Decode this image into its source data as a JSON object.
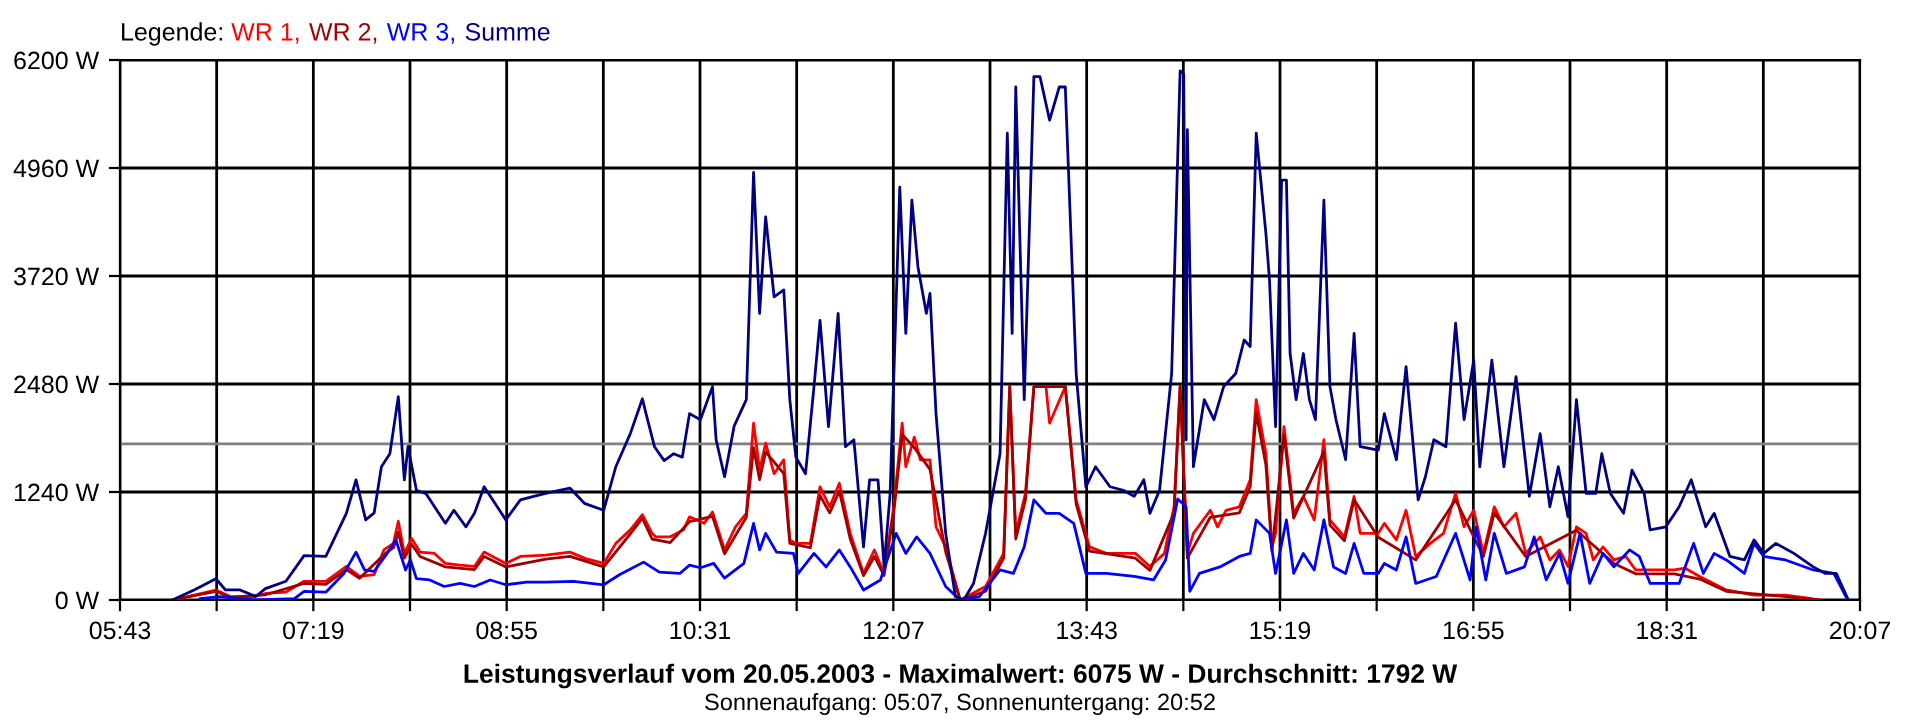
{
  "chart_data": {
    "type": "line",
    "title": "Leistungsverlauf vom 20.05.2003 - Maximalwert: 6075 W - Durchschnitt: 1792 W",
    "subtitle": "Sonnenaufgang: 05:07, Sonnenuntergang: 20:52",
    "legend_title": "Legende:",
    "legend": "top left",
    "grid": true,
    "marker": "none",
    "line_style": "solid",
    "xlim": [
      5.7167,
      20.1167
    ],
    "ylim": [
      0,
      6200
    ],
    "xticks": [
      {
        "value": 5.7167,
        "label": "05:43"
      },
      {
        "value": 6.5167,
        "label": null
      },
      {
        "value": 7.3167,
        "label": "07:19"
      },
      {
        "value": 8.1167,
        "label": null
      },
      {
        "value": 8.9167,
        "label": "08:55"
      },
      {
        "value": 9.7167,
        "label": null
      },
      {
        "value": 10.5167,
        "label": "10:31"
      },
      {
        "value": 11.3167,
        "label": null
      },
      {
        "value": 12.1167,
        "label": "12:07"
      },
      {
        "value": 12.9167,
        "label": null
      },
      {
        "value": 13.7167,
        "label": "13:43"
      },
      {
        "value": 14.5167,
        "label": null
      },
      {
        "value": 15.3167,
        "label": "15:19"
      },
      {
        "value": 16.1167,
        "label": null
      },
      {
        "value": 16.9167,
        "label": "16:55"
      },
      {
        "value": 17.7167,
        "label": null
      },
      {
        "value": 18.5167,
        "label": "18:31"
      },
      {
        "value": 19.3167,
        "label": null
      },
      {
        "value": 20.1167,
        "label": "20:07"
      }
    ],
    "yticks": [
      {
        "value": 0,
        "label": "0 W"
      },
      {
        "value": 1240,
        "label": "1240 W"
      },
      {
        "value": 2480,
        "label": "2480 W"
      },
      {
        "value": 3720,
        "label": "3720 W"
      },
      {
        "value": 4960,
        "label": "4960 W"
      },
      {
        "value": 6200,
        "label": "6200 W"
      }
    ],
    "ref_lines": [
      {
        "axis": "y",
        "value": 1792,
        "color": "#808080"
      }
    ],
    "series": [
      {
        "name": "WR 1,",
        "color": "#ff0000",
        "x": [
          6.15,
          6.33,
          6.51,
          6.63,
          6.83,
          6.92,
          7.09,
          7.24,
          7.42,
          7.59,
          7.7,
          7.82,
          7.9,
          7.98,
          8.02,
          8.07,
          8.13,
          8.2,
          8.32,
          8.41,
          8.53,
          8.65,
          8.73,
          8.91,
          9.03,
          9.24,
          9.44,
          9.57,
          9.72,
          9.82,
          9.94,
          10.04,
          10.12,
          10.15,
          10.27,
          10.38,
          10.43,
          10.55,
          10.62,
          10.72,
          10.81,
          10.9,
          10.96,
          11.01,
          11.06,
          11.13,
          11.21,
          11.26,
          11.31,
          11.43,
          11.51,
          11.59,
          11.67,
          11.76,
          11.87,
          11.96,
          12.04,
          12.12,
          12.19,
          12.22,
          12.29,
          12.34,
          12.42,
          12.47,
          12.55,
          12.67,
          12.88,
          13.03,
          13.08,
          13.13,
          13.21,
          13.28,
          13.38,
          13.41,
          13.54,
          13.63,
          13.74,
          13.88,
          13.99,
          14.12,
          14.24,
          14.36,
          14.44,
          14.49,
          14.55,
          14.6,
          14.74,
          14.8,
          14.87,
          14.98,
          15.07,
          15.12,
          15.2,
          15.25,
          15.28,
          15.35,
          15.38,
          15.43,
          15.51,
          15.6,
          15.68,
          15.73,
          15.85,
          15.93,
          15.98,
          16.13,
          16.18,
          16.28,
          16.36,
          16.44,
          16.56,
          16.67,
          16.77,
          16.84,
          16.92,
          17.0,
          17.09,
          17.17,
          17.27,
          17.35,
          17.47,
          17.55,
          17.63,
          17.7,
          17.77,
          17.85,
          17.91,
          17.99,
          18.08,
          18.18,
          18.26,
          18.38,
          18.58,
          18.67,
          18.79,
          19.01,
          19.24,
          19.5,
          19.67,
          19.78
        ],
        "values": [
          0,
          55,
          115,
          40,
          40,
          75,
          90,
          215,
          215,
          385,
          270,
          290,
          575,
          650,
          905,
          535,
          705,
          550,
          535,
          420,
          400,
          385,
          550,
          420,
          500,
          515,
          550,
          475,
          420,
          650,
          805,
          980,
          765,
          725,
          725,
          805,
          955,
          880,
          1010,
          575,
          840,
          995,
          2030,
          1490,
          1800,
          1450,
          1610,
          690,
          650,
          650,
          1300,
          1070,
          1340,
          765,
          305,
          575,
          305,
          1070,
          2030,
          1530,
          1870,
          1610,
          1610,
          840,
          610,
          0,
          155,
          535,
          2450,
          765,
          1225,
          2450,
          2450,
          2030,
          2450,
          1150,
          610,
          535,
          535,
          535,
          385,
          535,
          1070,
          2450,
          535,
          765,
          1030,
          840,
          1030,
          1070,
          1380,
          2300,
          1680,
          610,
          765,
          1990,
          1610,
          995,
          1190,
          920,
          1840,
          920,
          725,
          1190,
          765,
          765,
          880,
          690,
          1030,
          500,
          650,
          765,
          1225,
          840,
          1030,
          535,
          1070,
          840,
          995,
          535,
          725,
          460,
          575,
          385,
          840,
          765,
          460,
          610,
          460,
          500,
          345,
          345,
          345,
          365,
          270,
          115,
          55,
          55,
          25,
          0
        ]
      },
      {
        "name": "WR 2,",
        "color": "#a00000",
        "x": [
          6.15,
          6.51,
          6.63,
          6.92,
          7.24,
          7.42,
          7.59,
          7.7,
          7.9,
          7.98,
          8.02,
          8.07,
          8.13,
          8.2,
          8.41,
          8.65,
          8.73,
          8.91,
          9.24,
          9.44,
          9.72,
          9.94,
          10.04,
          10.12,
          10.27,
          10.43,
          10.62,
          10.72,
          10.9,
          10.96,
          11.01,
          11.06,
          11.21,
          11.26,
          11.43,
          11.51,
          11.59,
          11.67,
          11.76,
          11.87,
          11.96,
          12.04,
          12.12,
          12.19,
          12.29,
          12.42,
          12.55,
          12.67,
          12.88,
          13.03,
          13.08,
          13.13,
          13.21,
          13.28,
          13.41,
          13.54,
          13.63,
          13.74,
          14.12,
          14.24,
          14.44,
          14.49,
          14.55,
          14.74,
          14.98,
          15.07,
          15.12,
          15.2,
          15.25,
          15.35,
          15.43,
          15.68,
          15.73,
          15.85,
          15.93,
          16.13,
          16.44,
          16.77,
          17.0,
          17.09,
          17.35,
          17.77,
          18.08,
          18.26,
          18.58,
          18.79,
          19.01,
          19.5,
          19.78
        ],
        "values": [
          0,
          100,
          30,
          60,
          190,
          180,
          350,
          250,
          520,
          600,
          780,
          480,
          640,
          500,
          380,
          350,
          500,
          380,
          470,
          500,
          380,
          760,
          940,
          700,
          660,
          900,
          960,
          530,
          950,
          1750,
          1380,
          1700,
          1450,
          650,
          600,
          1200,
          1000,
          1250,
          700,
          280,
          500,
          280,
          1000,
          1900,
          1750,
          1500,
          550,
          0,
          100,
          480,
          2450,
          700,
          1150,
          2450,
          2450,
          2450,
          1100,
          560,
          480,
          340,
          1000,
          2450,
          480,
          950,
          1000,
          1300,
          2150,
          1550,
          560,
          1900,
          940,
          1700,
          860,
          680,
          1150,
          720,
          460,
          1150,
          500,
          1000,
          500,
          800,
          420,
          300,
          300,
          240,
          100,
          40,
          0
        ]
      },
      {
        "name": "WR 3,",
        "color": "#0000ff",
        "x": [
          6.38,
          6.54,
          6.83,
          7.16,
          7.24,
          7.42,
          7.57,
          7.67,
          7.74,
          7.82,
          7.92,
          8.0,
          8.08,
          8.12,
          8.17,
          8.28,
          8.4,
          8.53,
          8.65,
          8.78,
          8.91,
          9.08,
          9.24,
          9.47,
          9.72,
          9.85,
          10.05,
          10.18,
          10.35,
          10.43,
          10.52,
          10.63,
          10.72,
          10.88,
          10.96,
          11.01,
          11.06,
          11.15,
          11.29,
          11.33,
          11.46,
          11.56,
          11.67,
          11.76,
          11.87,
          12.01,
          12.14,
          12.22,
          12.31,
          12.42,
          12.55,
          12.67,
          12.83,
          13.0,
          13.11,
          13.2,
          13.28,
          13.38,
          13.49,
          13.61,
          13.71,
          13.88,
          14.11,
          14.27,
          14.37,
          14.47,
          14.54,
          14.57,
          14.65,
          14.82,
          14.98,
          15.07,
          15.12,
          15.23,
          15.28,
          15.37,
          15.43,
          15.51,
          15.6,
          15.68,
          15.76,
          15.86,
          15.93,
          16.01,
          16.13,
          16.18,
          16.28,
          16.36,
          16.44,
          16.61,
          16.77,
          16.89,
          16.94,
          17.02,
          17.09,
          17.19,
          17.34,
          17.42,
          17.52,
          17.63,
          17.7,
          17.8,
          17.88,
          17.99,
          18.08,
          18.21,
          18.29,
          18.38,
          18.62,
          18.74,
          18.82,
          18.91,
          19.01,
          19.16,
          19.24,
          19.32,
          19.5,
          19.73,
          19.9,
          20.0
        ],
        "values": [
          15,
          40,
          0,
          15,
          100,
          90,
          305,
          550,
          345,
          330,
          520,
          690,
          345,
          460,
          245,
          230,
          155,
          190,
          155,
          230,
          175,
          205,
          205,
          215,
          175,
          290,
          435,
          320,
          305,
          400,
          370,
          420,
          250,
          420,
          880,
          575,
          765,
          550,
          535,
          305,
          535,
          380,
          575,
          380,
          115,
          230,
          765,
          535,
          725,
          535,
          155,
          0,
          40,
          345,
          305,
          610,
          1150,
          995,
          995,
          880,
          305,
          305,
          270,
          230,
          460,
          1160,
          1070,
          100,
          305,
          380,
          500,
          535,
          920,
          765,
          305,
          920,
          305,
          535,
          345,
          920,
          380,
          305,
          650,
          305,
          305,
          420,
          345,
          725,
          190,
          270,
          765,
          230,
          840,
          230,
          765,
          305,
          380,
          725,
          230,
          535,
          190,
          765,
          190,
          535,
          380,
          575,
          500,
          190,
          190,
          650,
          305,
          535,
          460,
          305,
          650,
          500,
          460,
          345,
          305,
          40
        ]
      },
      {
        "name": "Summe",
        "color": "#000080",
        "x": [
          6.15,
          6.33,
          6.51,
          6.59,
          6.71,
          6.84,
          6.92,
          7.09,
          7.24,
          7.42,
          7.59,
          7.67,
          7.75,
          7.82,
          7.88,
          7.95,
          8.02,
          8.07,
          8.1,
          8.17,
          8.25,
          8.32,
          8.41,
          8.48,
          8.58,
          8.65,
          8.73,
          8.91,
          9.03,
          9.14,
          9.24,
          9.44,
          9.56,
          9.72,
          9.82,
          9.94,
          10.04,
          10.07,
          10.14,
          10.22,
          10.3,
          10.37,
          10.43,
          10.52,
          10.62,
          10.65,
          10.72,
          10.8,
          10.9,
          10.96,
          11.01,
          11.06,
          11.13,
          11.21,
          11.26,
          11.31,
          11.39,
          11.46,
          11.51,
          11.58,
          11.66,
          11.72,
          11.79,
          11.87,
          11.92,
          11.99,
          12.04,
          12.09,
          12.17,
          12.22,
          12.27,
          12.32,
          12.39,
          12.42,
          12.47,
          12.55,
          12.63,
          12.7,
          12.78,
          12.88,
          13.0,
          13.06,
          13.1,
          13.13,
          13.2,
          13.28,
          13.33,
          13.41,
          13.49,
          13.54,
          13.63,
          13.71,
          13.79,
          13.91,
          14.02,
          14.11,
          14.19,
          14.24,
          14.32,
          14.42,
          14.49,
          14.52,
          14.54,
          14.55,
          14.6,
          14.69,
          14.77,
          14.85,
          14.95,
          15.02,
          15.07,
          15.12,
          15.2,
          15.23,
          15.28,
          15.33,
          15.37,
          15.4,
          15.45,
          15.51,
          15.56,
          15.61,
          15.68,
          15.73,
          15.78,
          15.86,
          15.93,
          15.98,
          16.13,
          16.18,
          16.28,
          16.36,
          16.46,
          16.52,
          16.59,
          16.69,
          16.77,
          16.84,
          16.92,
          16.97,
          17.07,
          17.17,
          17.27,
          17.38,
          17.47,
          17.55,
          17.62,
          17.7,
          17.77,
          17.85,
          17.93,
          17.98,
          18.05,
          18.16,
          18.23,
          18.33,
          18.38,
          18.51,
          18.62,
          18.72,
          18.84,
          18.91,
          19.04,
          19.16,
          19.24,
          19.32,
          19.42,
          19.57,
          19.73,
          19.83,
          19.92,
          20.02
        ],
        "values": [
          0,
          115,
          245,
          115,
          115,
          40,
          130,
          215,
          510,
          500,
          995,
          1380,
          920,
          1000,
          1530,
          1680,
          2335,
          1380,
          1760,
          1260,
          1220,
          1070,
          880,
          1030,
          840,
          995,
          1300,
          920,
          1150,
          1190,
          1225,
          1285,
          1110,
          1030,
          1530,
          1910,
          2310,
          2140,
          1760,
          1600,
          1680,
          1640,
          2140,
          2070,
          2450,
          1840,
          1415,
          2000,
          2300,
          4910,
          3290,
          4400,
          3480,
          3560,
          2300,
          1640,
          1450,
          2450,
          3210,
          1990,
          3290,
          1760,
          1840,
          610,
          1380,
          1380,
          380,
          1220,
          4740,
          3060,
          4590,
          3830,
          3290,
          3520,
          2140,
          765,
          40,
          0,
          190,
          765,
          1680,
          5360,
          3060,
          5890,
          2300,
          6010,
          6010,
          5510,
          5890,
          5890,
          2600,
          1300,
          1530,
          1300,
          1260,
          1190,
          1380,
          995,
          1260,
          2600,
          6075,
          6040,
          1840,
          5400,
          1530,
          2300,
          2070,
          2450,
          2600,
          2985,
          2910,
          5360,
          4210,
          3670,
          1990,
          4820,
          4820,
          2830,
          2300,
          2830,
          2300,
          2070,
          4590,
          2450,
          2070,
          1610,
          3060,
          1760,
          1720,
          2140,
          1610,
          2680,
          1150,
          1415,
          1840,
          1760,
          3180,
          2070,
          2755,
          1530,
          2755,
          1530,
          2565,
          1190,
          1910,
          1070,
          1530,
          955,
          2300,
          1225,
          1225,
          1680,
          1225,
          995,
          1490,
          1225,
          805,
          840,
          1070,
          1380,
          840,
          995,
          500,
          460,
          690,
          535,
          650,
          535,
          380,
          305,
          305,
          0
        ]
      }
    ]
  }
}
